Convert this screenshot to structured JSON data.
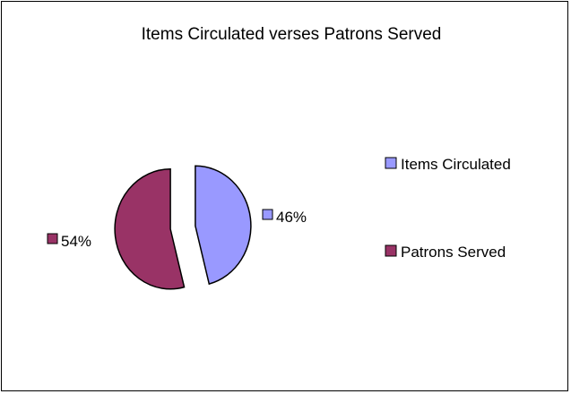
{
  "chart_data": {
    "type": "pie",
    "title": "Items Circulated verses Patrons Served",
    "exploded": true,
    "legend_position": "right",
    "slices": [
      {
        "name": "Items Circulated",
        "value": 46,
        "label": "46%",
        "color": "#9999FF"
      },
      {
        "name": "Patrons Served",
        "value": 54,
        "label": "54%",
        "color": "#993366"
      }
    ]
  }
}
